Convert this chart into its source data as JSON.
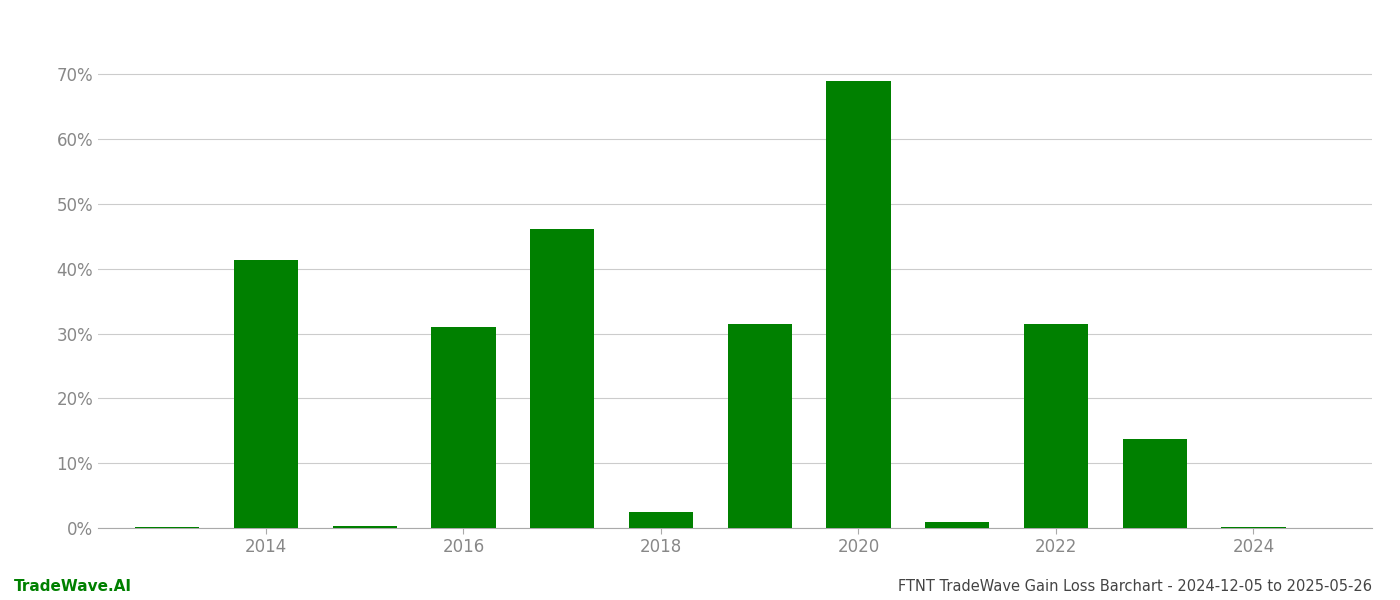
{
  "years": [
    2013,
    2014,
    2015,
    2016,
    2017,
    2018,
    2019,
    2020,
    2021,
    2022,
    2023,
    2024
  ],
  "values": [
    0.002,
    0.414,
    0.003,
    0.31,
    0.462,
    0.025,
    0.315,
    0.69,
    0.01,
    0.315,
    0.138,
    0.001
  ],
  "bar_color": "#008000",
  "background_color": "#ffffff",
  "grid_color": "#cccccc",
  "axis_label_color": "#888888",
  "title_text": "FTNT TradeWave Gain Loss Barchart - 2024-12-05 to 2025-05-26",
  "watermark_text": "TradeWave.AI",
  "ylim": [
    0,
    0.75
  ],
  "yticks": [
    0.0,
    0.1,
    0.2,
    0.3,
    0.4,
    0.5,
    0.6,
    0.7
  ],
  "bar_width": 0.65,
  "title_fontsize": 10.5,
  "tick_fontsize": 12,
  "watermark_fontsize": 11,
  "xlim_left": 2012.3,
  "xlim_right": 2025.2
}
